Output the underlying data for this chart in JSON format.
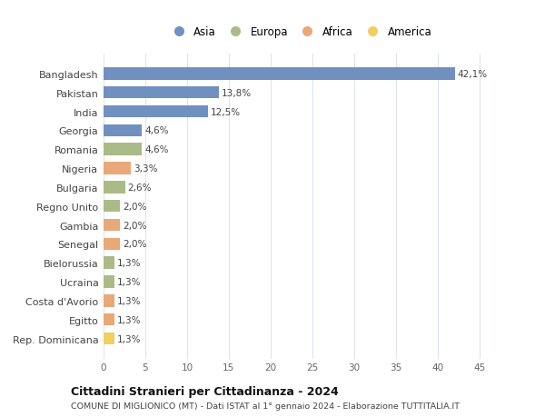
{
  "countries": [
    "Bangladesh",
    "Pakistan",
    "India",
    "Georgia",
    "Romania",
    "Nigeria",
    "Bulgaria",
    "Regno Unito",
    "Gambia",
    "Senegal",
    "Bielorussia",
    "Ucraina",
    "Costa d'Avorio",
    "Egitto",
    "Rep. Dominicana"
  ],
  "values": [
    42.1,
    13.8,
    12.5,
    4.6,
    4.6,
    3.3,
    2.6,
    2.0,
    2.0,
    2.0,
    1.3,
    1.3,
    1.3,
    1.3,
    1.3
  ],
  "labels": [
    "42,1%",
    "13,8%",
    "12,5%",
    "4,6%",
    "4,6%",
    "3,3%",
    "2,6%",
    "2,0%",
    "2,0%",
    "2,0%",
    "1,3%",
    "1,3%",
    "1,3%",
    "1,3%",
    "1,3%"
  ],
  "continents": [
    "Asia",
    "Asia",
    "Asia",
    "Asia",
    "Europa",
    "Africa",
    "Europa",
    "Europa",
    "Africa",
    "Africa",
    "Europa",
    "Europa",
    "Africa",
    "Africa",
    "America"
  ],
  "colors": {
    "Asia": "#7090c0",
    "Europa": "#aabb88",
    "Africa": "#e8a878",
    "America": "#f0d060"
  },
  "legend_order": [
    "Asia",
    "Europa",
    "Africa",
    "America"
  ],
  "title": "Cittadini Stranieri per Cittadinanza - 2024",
  "subtitle": "COMUNE DI MIGLIONICO (MT) - Dati ISTAT al 1° gennaio 2024 - Elaborazione TUTTITALIA.IT",
  "xlim": [
    0,
    47
  ],
  "xticks": [
    0,
    5,
    10,
    15,
    20,
    25,
    30,
    35,
    40,
    45
  ],
  "background_color": "#ffffff",
  "grid_color": "#dde4ec",
  "bar_height": 0.65
}
